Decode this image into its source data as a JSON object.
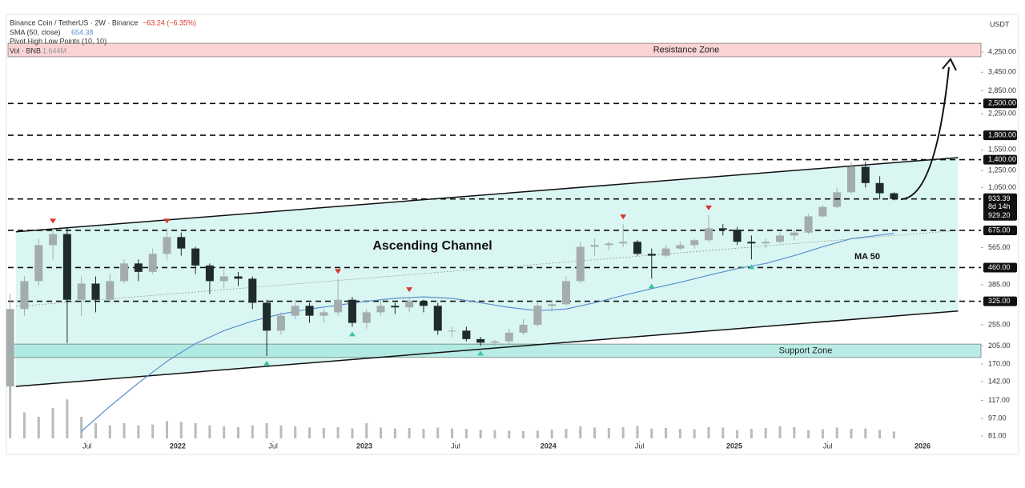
{
  "chart_data": {
    "type": "candlestick",
    "header": {
      "symbol": "Binance Coin / TetherUS · 2W · Binance",
      "change": "−63.24 (−6.35%)",
      "sma_label": "SMA (50, close)",
      "pivot_label": "Pivot High Low Points (10, 10)",
      "vol_label": "Vol · BNB",
      "vol_value": "1.644M"
    },
    "currency": "USDT",
    "x": [
      0,
      2,
      4,
      6,
      8,
      10,
      12,
      14,
      16,
      18,
      20,
      22,
      24,
      26,
      28,
      30,
      32,
      34,
      36,
      38,
      40,
      42,
      44,
      46,
      48,
      50,
      52,
      54,
      56,
      58,
      60,
      62,
      64,
      66,
      68,
      70,
      72,
      74,
      76,
      78,
      80,
      82,
      84,
      86,
      88,
      90,
      92,
      94,
      96,
      98,
      100,
      102,
      104,
      106,
      108,
      110,
      112,
      114,
      116,
      118,
      120,
      122,
      124
    ],
    "open": [
      135,
      300,
      400,
      580,
      650,
      330,
      390,
      330,
      400,
      480,
      440,
      530,
      630,
      560,
      470,
      400,
      420,
      410,
      320,
      240,
      280,
      310,
      280,
      290,
      330,
      260,
      290,
      310,
      305,
      325,
      310,
      240,
      240,
      220,
      212,
      215,
      235,
      255,
      310,
      315,
      400,
      570,
      580,
      590,
      600,
      530,
      520,
      560,
      580,
      610,
      690,
      680,
      600,
      590,
      600,
      640,
      660,
      780,
      860,
      1000,
      1300,
      1100,
      990
    ],
    "high": [
      350,
      420,
      620,
      690,
      690,
      420,
      420,
      430,
      500,
      500,
      560,
      690,
      660,
      570,
      480,
      450,
      440,
      420,
      330,
      290,
      330,
      320,
      300,
      410,
      340,
      300,
      330,
      320,
      340,
      330,
      320,
      250,
      250,
      225,
      218,
      245,
      270,
      320,
      330,
      420,
      600,
      620,
      600,
      720,
      610,
      560,
      580,
      600,
      620,
      790,
      720,
      700,
      640,
      620,
      660,
      680,
      800,
      880,
      1050,
      1370,
      1370,
      1180,
      1000
    ],
    "low": [
      130,
      280,
      380,
      500,
      211,
      280,
      290,
      320,
      390,
      400,
      430,
      500,
      520,
      430,
      350,
      370,
      380,
      300,
      185,
      230,
      270,
      260,
      260,
      280,
      250,
      245,
      280,
      285,
      290,
      290,
      230,
      225,
      215,
      205,
      205,
      210,
      230,
      250,
      290,
      310,
      390,
      520,
      550,
      570,
      520,
      410,
      510,
      550,
      560,
      600,
      640,
      580,
      500,
      560,
      590,
      610,
      650,
      770,
      850,
      980,
      1050,
      930,
      920
    ],
    "close": [
      300,
      400,
      580,
      650,
      330,
      390,
      330,
      400,
      480,
      440,
      530,
      630,
      560,
      470,
      400,
      420,
      410,
      320,
      240,
      280,
      310,
      280,
      290,
      330,
      260,
      290,
      310,
      305,
      325,
      310,
      240,
      240,
      220,
      212,
      215,
      235,
      255,
      310,
      315,
      400,
      570,
      580,
      590,
      600,
      530,
      520,
      560,
      580,
      610,
      690,
      680,
      600,
      590,
      600,
      640,
      660,
      780,
      860,
      1000,
      1300,
      1100,
      990,
      933.39
    ],
    "volume": [
      12,
      6,
      5,
      7,
      9,
      5,
      3.5,
      3,
      3.5,
      3,
      3.2,
      4,
      3.8,
      3.5,
      3,
      2.8,
      2.6,
      3,
      3.5,
      3,
      2.8,
      2.5,
      2.4,
      2.6,
      2.3,
      3.5,
      2.5,
      2.3,
      2.4,
      2.2,
      2.5,
      2.3,
      2.2,
      2,
      1.9,
      1.8,
      1.7,
      1.8,
      2,
      2.2,
      2.8,
      2.5,
      2.4,
      2.6,
      2.9,
      2.3,
      2.4,
      2.2,
      2.1,
      2.6,
      2.5,
      1.9,
      2.2,
      2.4,
      2.8,
      2.6,
      1.9,
      2.1,
      2.5,
      2.2,
      2.3,
      2,
      1.6
    ],
    "up_color": "#a3adac",
    "down_color": "#1f2a2a",
    "volume_color": "#b8bcbc",
    "sma": {
      "color": "#5b8fd0",
      "x": [
        10,
        14,
        18,
        22,
        26,
        30,
        34,
        38,
        42,
        46,
        50,
        54,
        58,
        62,
        66,
        70,
        74,
        78,
        82,
        86,
        90,
        94,
        98,
        102,
        106,
        110,
        114,
        118,
        124
      ],
      "values": [
        85,
        110,
        140,
        175,
        210,
        240,
        265,
        285,
        300,
        312,
        325,
        335,
        340,
        335,
        320,
        305,
        295,
        300,
        320,
        345,
        370,
        395,
        425,
        455,
        480,
        520,
        570,
        620,
        654.38
      ]
    },
    "ma_label": "MA 50",
    "xlim": [
      -0.3,
      136.2
    ],
    "xticks": [
      {
        "value": 10.8,
        "label": "Jul"
      },
      {
        "value": 23.5,
        "label": "2022"
      },
      {
        "value": 36.9,
        "label": "Jul"
      },
      {
        "value": 49.7,
        "label": "2023"
      },
      {
        "value": 62.5,
        "label": "Jul"
      },
      {
        "value": 75.5,
        "label": "2024"
      },
      {
        "value": 88.3,
        "label": "Jul"
      },
      {
        "value": 101.6,
        "label": "2025"
      },
      {
        "value": 114.7,
        "label": "Jul"
      },
      {
        "value": 128,
        "label": "2026"
      }
    ],
    "ylim": [
      77.7,
      6160
    ],
    "log_y": true,
    "yticks": [
      {
        "value": 4250,
        "label": "4,250.00"
      },
      {
        "value": 3450,
        "label": "3,450.00"
      },
      {
        "value": 2850,
        "label": "2,850.00"
      },
      {
        "value": 2250,
        "label": "2,250.00"
      },
      {
        "value": 1550,
        "label": "1,550.00"
      },
      {
        "value": 1250,
        "label": "1,250.00"
      },
      {
        "value": 1050,
        "label": "1,050.00"
      },
      {
        "value": 565,
        "label": "565.00"
      },
      {
        "value": 385,
        "label": "385.00"
      },
      {
        "value": 255,
        "label": "255.00"
      },
      {
        "value": 205,
        "label": "205.00"
      },
      {
        "value": 170,
        "label": "170.00"
      },
      {
        "value": 142,
        "label": "142.00"
      },
      {
        "value": 117,
        "label": "117.00"
      },
      {
        "value": 97,
        "label": "97.00"
      },
      {
        "value": 81,
        "label": "81.00"
      }
    ],
    "levels": [
      {
        "value": 2500,
        "label": "2,500.00"
      },
      {
        "value": 1800,
        "label": "1,800.00"
      },
      {
        "value": 1400,
        "label": "1,400.00"
      },
      {
        "value": 675,
        "label": "675.00"
      },
      {
        "value": 460,
        "label": "460.00"
      },
      {
        "value": 325,
        "label": "325.00"
      }
    ],
    "price_labels": {
      "countdown": "8d 14h",
      "secondary": "929.20"
    },
    "zones": [
      {
        "name": "Resistance Zone",
        "range": [
          4045,
          4650
        ],
        "color": "#f9caca"
      },
      {
        "name": "Support Zone",
        "range": [
          182,
          209
        ],
        "color": "#a8e8e0"
      }
    ],
    "channel": {
      "name": "Ascending Channel",
      "color": "#d3f5f0",
      "x": [
        0.8,
        133
      ],
      "upper": [
        665,
        1430
      ],
      "lower": [
        135,
        294
      ]
    },
    "trendline": {
      "x": [
        0.8,
        133
      ],
      "values": [
        308,
        675
      ]
    },
    "pivot_highs": {
      "color": "#d9352c",
      "x": [
        6,
        22,
        46,
        56,
        86,
        98
      ],
      "values": [
        690,
        690,
        410,
        340,
        720,
        790
      ]
    },
    "pivot_lows": {
      "color": "#3cc4a8",
      "x": [
        36,
        48,
        66,
        90,
        104
      ],
      "values": [
        185,
        250,
        205,
        410,
        500
      ]
    }
  }
}
